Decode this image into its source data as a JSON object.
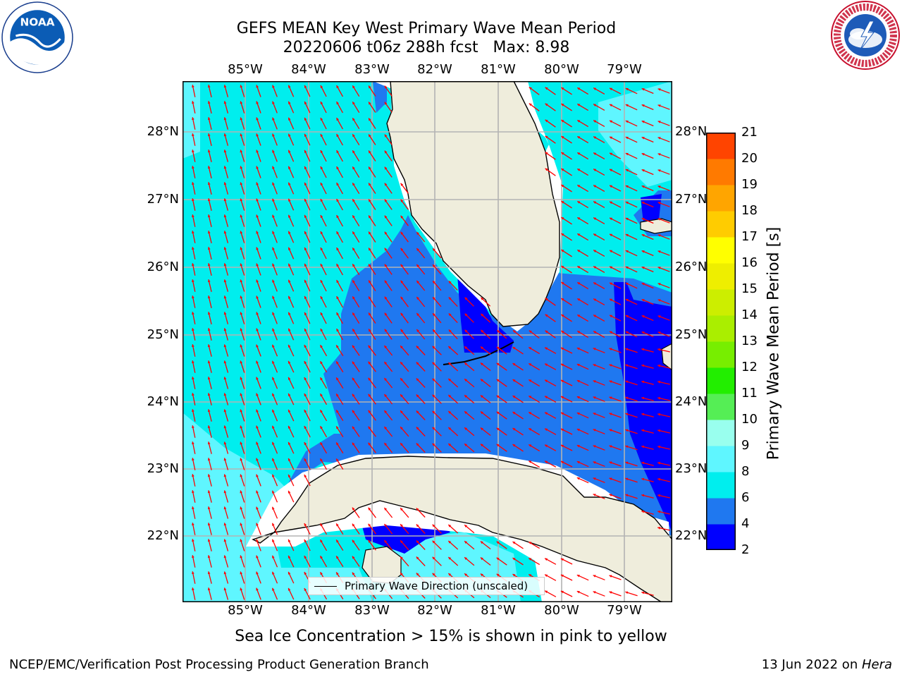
{
  "title": {
    "line1": "GEFS MEAN Key West Primary Wave Mean Period",
    "line2": "20220606 t06z 288h fcst   Max: 8.98"
  },
  "logos": {
    "left": "noaa-logo",
    "right": "nws-logo"
  },
  "axes": {
    "longitude_ticks": [
      "85°W",
      "84°W",
      "83°W",
      "82°W",
      "81°W",
      "80°W",
      "79°W"
    ],
    "latitude_ticks": [
      "28°N",
      "27°N",
      "26°N",
      "25°N",
      "24°N",
      "23°N",
      "22°N"
    ],
    "lon_range": [
      -86.0,
      -78.3
    ],
    "lat_range": [
      21.0,
      28.75
    ],
    "grid": true
  },
  "legend": {
    "label": "Primary Wave Direction (unscaled)",
    "placement": "bottom-center"
  },
  "colorbar": {
    "label": "Primary Wave Mean Period [s]",
    "tick_labels": [
      "21",
      "20",
      "19",
      "18",
      "17",
      "16",
      "15",
      "14",
      "13",
      "12",
      "11",
      "10",
      "9",
      "8",
      "6",
      "4",
      "2"
    ],
    "colors_low_to_high": [
      "#0000ff",
      "#1f78f0",
      "#00eeee",
      "#5ff6ff",
      "#99ffee",
      "#55ee55",
      "#22ee00",
      "#77ee00",
      "#aaee00",
      "#ccee00",
      "#eeee00",
      "#ffff00",
      "#ffcc00",
      "#ffa500",
      "#ff7a00",
      "#ff4400",
      "#ff0000"
    ]
  },
  "colors": {
    "land": "#efeddc",
    "arrow": "#ff0000",
    "grid": "#b3b3b3",
    "coast": "#000000",
    "period_4_6": "#0000ff",
    "period_6_7": "#1f78f0",
    "period_7_8": "#00eeee",
    "period_8_9": "#5ff6ff"
  },
  "note": "Sea Ice Concentration > 15% is shown in pink to yellow",
  "footer": {
    "left": "NCEP/EMC/Verification Post Processing Product Generation Branch",
    "date": "13 Jun 2022 on ",
    "host": "Hera"
  }
}
